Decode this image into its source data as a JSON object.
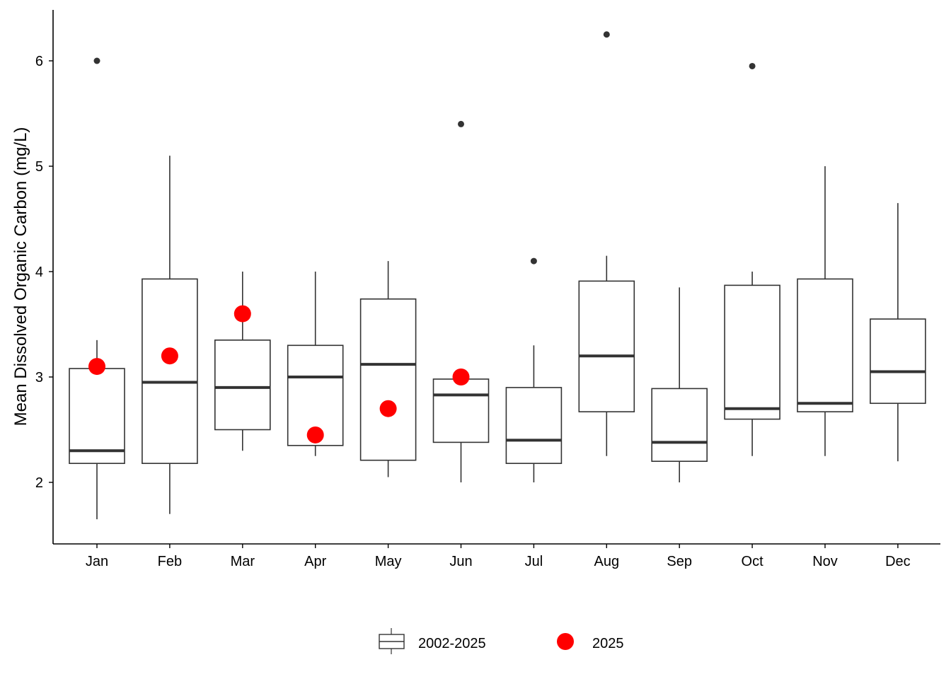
{
  "chart_data": {
    "type": "box",
    "ylabel": "Mean Dissolved Organic Carbon (mg/L)",
    "xlabel": "",
    "ylim": [
      1.45,
      6.5
    ],
    "yticks": [
      2,
      3,
      4,
      5,
      6
    ],
    "grid": false,
    "legend_position": "bottom",
    "categories": [
      "Jan",
      "Feb",
      "Mar",
      "Apr",
      "May",
      "Jun",
      "Jul",
      "Aug",
      "Sep",
      "Oct",
      "Nov",
      "Dec"
    ],
    "series": [
      {
        "name": "2002-2025",
        "kind": "boxplot",
        "boxes": [
          {
            "whisker_low": 1.65,
            "q1": 2.18,
            "median": 2.3,
            "q3": 3.08,
            "whisker_high": 3.35,
            "outliers": [
              6.0
            ]
          },
          {
            "whisker_low": 1.7,
            "q1": 2.18,
            "median": 2.95,
            "q3": 3.93,
            "whisker_high": 5.1,
            "outliers": []
          },
          {
            "whisker_low": 2.3,
            "q1": 2.5,
            "median": 2.9,
            "q3": 3.35,
            "whisker_high": 4.0,
            "outliers": []
          },
          {
            "whisker_low": 2.25,
            "q1": 2.35,
            "median": 3.0,
            "q3": 3.3,
            "whisker_high": 4.0,
            "outliers": []
          },
          {
            "whisker_low": 2.05,
            "q1": 2.21,
            "median": 3.12,
            "q3": 3.74,
            "whisker_high": 4.1,
            "outliers": []
          },
          {
            "whisker_low": 2.0,
            "q1": 2.38,
            "median": 2.83,
            "q3": 2.98,
            "whisker_high": 2.98,
            "outliers": [
              5.4
            ]
          },
          {
            "whisker_low": 2.0,
            "q1": 2.18,
            "median": 2.4,
            "q3": 2.9,
            "whisker_high": 3.3,
            "outliers": [
              4.1
            ]
          },
          {
            "whisker_low": 2.25,
            "q1": 2.67,
            "median": 3.2,
            "q3": 3.91,
            "whisker_high": 4.15,
            "outliers": [
              6.25
            ]
          },
          {
            "whisker_low": 2.0,
            "q1": 2.2,
            "median": 2.38,
            "q3": 2.89,
            "whisker_high": 3.85,
            "outliers": []
          },
          {
            "whisker_low": 2.25,
            "q1": 2.6,
            "median": 2.7,
            "q3": 3.87,
            "whisker_high": 4.0,
            "outliers": [
              5.95
            ]
          },
          {
            "whisker_low": 2.25,
            "q1": 2.67,
            "median": 2.75,
            "q3": 3.93,
            "whisker_high": 5.0,
            "outliers": []
          },
          {
            "whisker_low": 2.2,
            "q1": 2.75,
            "median": 3.05,
            "q3": 3.55,
            "whisker_high": 4.65,
            "outliers": []
          }
        ]
      },
      {
        "name": "2025",
        "kind": "points",
        "color": "#ff0000",
        "values": [
          3.1,
          3.2,
          3.6,
          2.45,
          2.7,
          3.0,
          null,
          null,
          null,
          null,
          null,
          null
        ]
      }
    ],
    "legend": [
      {
        "label": "2002-2025",
        "symbol": "box"
      },
      {
        "label": "2025",
        "symbol": "red-dot"
      }
    ]
  }
}
